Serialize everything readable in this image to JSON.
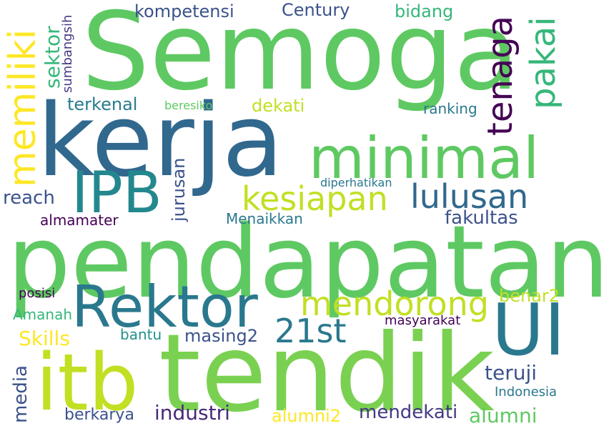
{
  "words": [
    {
      "text": "Semoga",
      "color": "#5ec962"
    },
    {
      "text": "kerja",
      "color": "#31688e"
    },
    {
      "text": "pendapatan",
      "color": "#5ec962"
    },
    {
      "text": "tendik",
      "color": "#7ad151"
    },
    {
      "text": "itb",
      "color": "#c2df23"
    },
    {
      "text": "Rektor",
      "color": "#2a788e"
    },
    {
      "text": "UI",
      "color": "#2a788e"
    },
    {
      "text": "minimal",
      "color": "#5ec962"
    },
    {
      "text": "IPB",
      "color": "#23888e"
    },
    {
      "text": "memiliki",
      "color": "#fde725"
    },
    {
      "text": "tenaga",
      "color": "#440154"
    },
    {
      "text": "pakai",
      "color": "#35b779"
    },
    {
      "text": "kesiapan",
      "color": "#c2df23"
    },
    {
      "text": "lulusan",
      "color": "#31688e"
    },
    {
      "text": "mendorong",
      "color": "#c2df23"
    },
    {
      "text": "21st",
      "color": "#2a788e"
    },
    {
      "text": "kompetensi",
      "color": "#3b528b"
    },
    {
      "text": "Century",
      "color": "#3b528b"
    },
    {
      "text": "bidang",
      "color": "#35b779"
    },
    {
      "text": "sektor",
      "color": "#35b779"
    },
    {
      "text": "sumbangsih",
      "color": "#443983"
    },
    {
      "text": "terkenal",
      "color": "#287c8e"
    },
    {
      "text": "beresiko",
      "color": "#5ec962"
    },
    {
      "text": "dekati",
      "color": "#c2df23"
    },
    {
      "text": "ranking",
      "color": "#2a788e"
    },
    {
      "text": "jurusan",
      "color": "#3b528b"
    },
    {
      "text": "reach",
      "color": "#3b528b"
    },
    {
      "text": "diperhatikan",
      "color": "#2a788e"
    },
    {
      "text": "fakultas",
      "color": "#3b528b"
    },
    {
      "text": "almamater",
      "color": "#440154"
    },
    {
      "text": "Menaikkan",
      "color": "#2a788e"
    },
    {
      "text": "benar2",
      "color": "#c2df23"
    },
    {
      "text": "posisi",
      "color": "#440154"
    },
    {
      "text": "Amanah",
      "color": "#35b779"
    },
    {
      "text": "masyarakat",
      "color": "#440154"
    },
    {
      "text": "Skills",
      "color": "#fde725"
    },
    {
      "text": "bantu",
      "color": "#21918c"
    },
    {
      "text": "masing2",
      "color": "#3b528b"
    },
    {
      "text": "teruji",
      "color": "#3b528b"
    },
    {
      "text": "media",
      "color": "#3b528b"
    },
    {
      "text": "Indonesia",
      "color": "#2a788e"
    },
    {
      "text": "berkarya",
      "color": "#3b528b"
    },
    {
      "text": "industri",
      "color": "#482878"
    },
    {
      "text": "alumni2",
      "color": "#fde725"
    },
    {
      "text": "mendekati",
      "color": "#443983"
    },
    {
      "text": "alumni",
      "color": "#5ec962"
    }
  ]
}
